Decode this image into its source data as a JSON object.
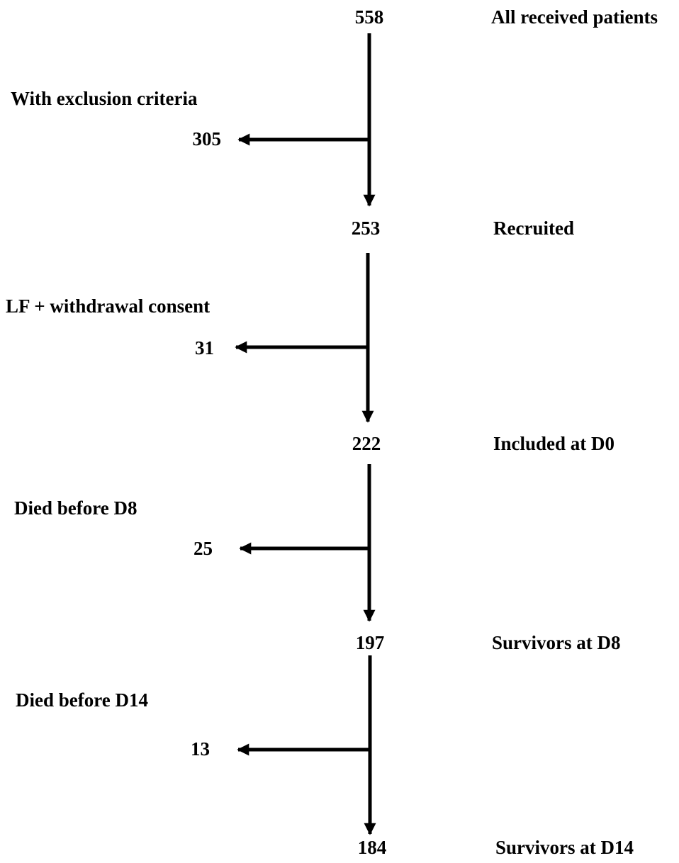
{
  "stages": [
    {
      "count": "558",
      "label": "All received patients"
    },
    {
      "count": "253",
      "label": "Recruited"
    },
    {
      "count": "222",
      "label": "Included at D0"
    },
    {
      "count": "197",
      "label": "Survivors at  D8"
    },
    {
      "count": "184",
      "label": "Survivors at D14"
    }
  ],
  "exclusions": [
    {
      "label": "With exclusion criteria",
      "count": "305"
    },
    {
      "label": "LF + withdrawal consent",
      "count": "31"
    },
    {
      "label": "Died before D8",
      "count": "25"
    },
    {
      "label": "Died before D14",
      "count": "13"
    }
  ],
  "colors": {
    "ink": "#000000",
    "background": "#ffffff"
  }
}
